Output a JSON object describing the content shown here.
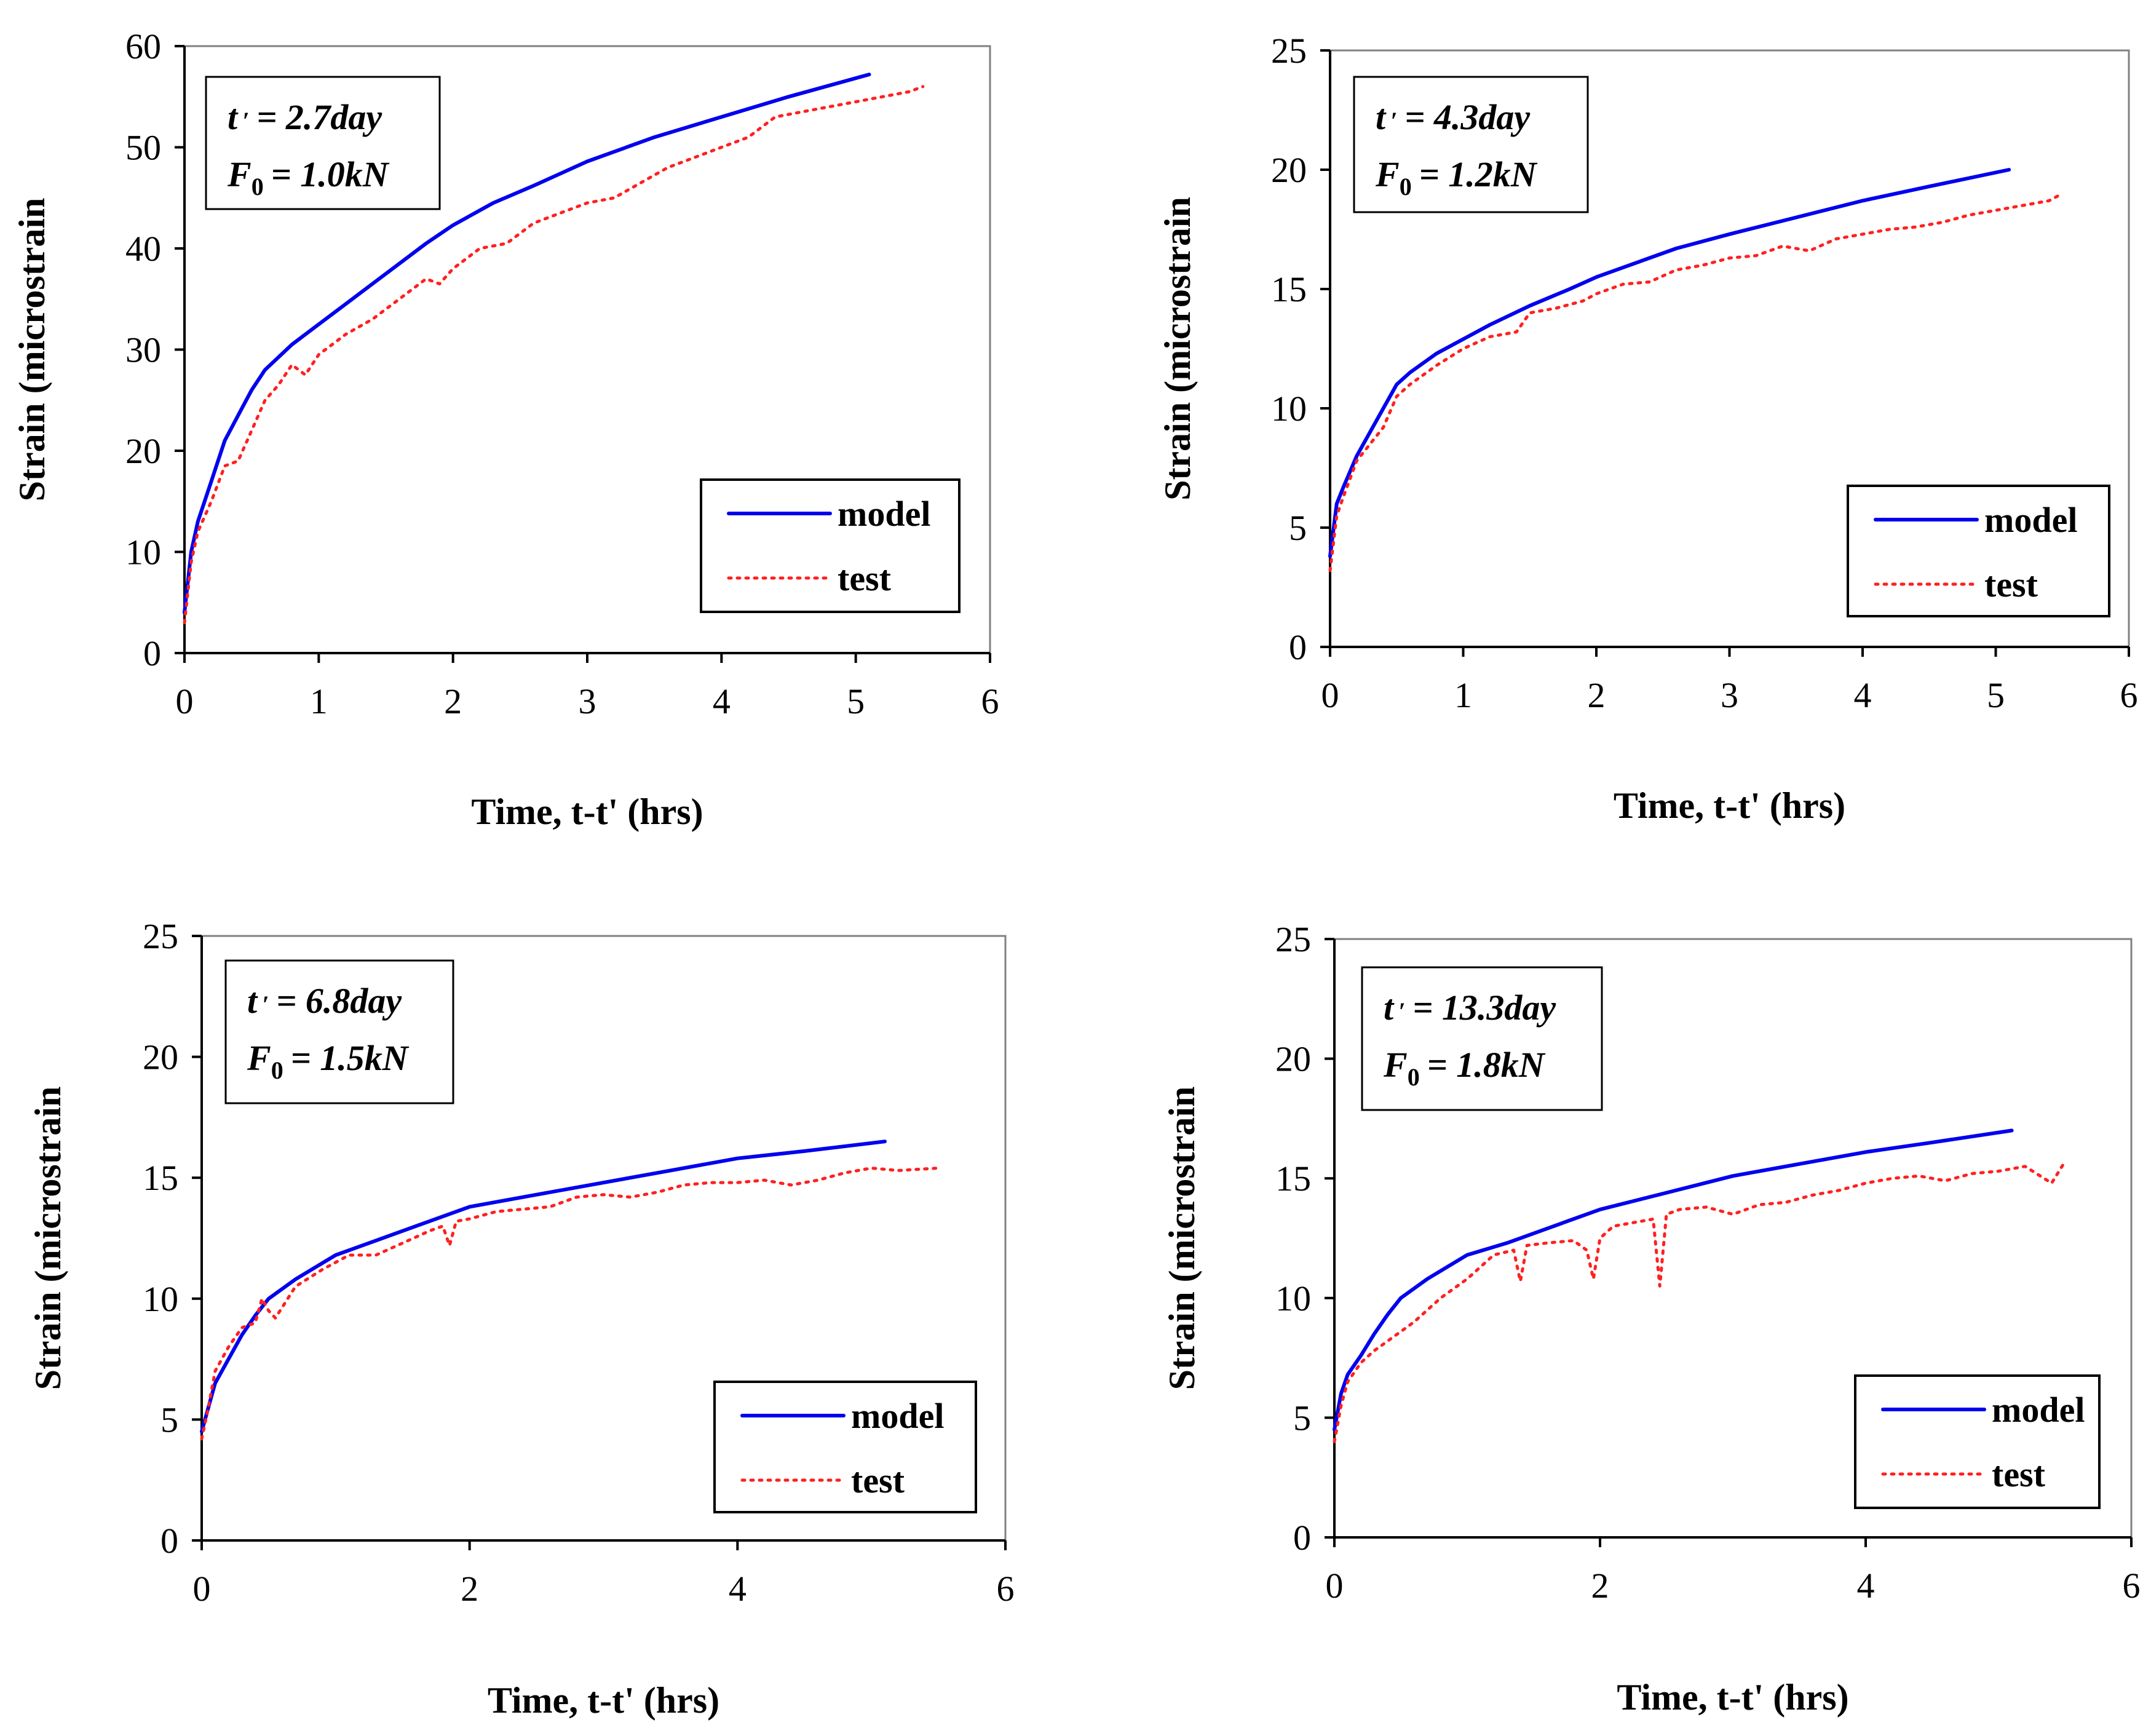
{
  "chart_data": [
    {
      "type": "line",
      "title": "",
      "xlabel": "Time, t-t' (hrs)",
      "ylabel": "Strain (microstrain",
      "xlim": [
        0,
        6
      ],
      "ylim": [
        0,
        60
      ],
      "xticks": [
        "0",
        "1",
        "2",
        "3",
        "4",
        "5",
        "6"
      ],
      "yticks": [
        "0",
        "10",
        "20",
        "30",
        "40",
        "50",
        "60"
      ],
      "annotation": {
        "age_symbol": "t",
        "age_value": "= 2.7day",
        "force_symbol": "F",
        "force_sub": "0",
        "force_value": "= 1.0kN"
      },
      "legend": {
        "position": "bottom-right",
        "entries": [
          "model",
          "test"
        ]
      },
      "series": [
        {
          "name": "model",
          "style": "solid",
          "color": "#0000ee",
          "x": [
            0,
            0.05,
            0.1,
            0.2,
            0.3,
            0.4,
            0.5,
            0.6,
            0.8,
            1.0,
            1.2,
            1.5,
            1.8,
            2.0,
            2.3,
            2.6,
            3.0,
            3.5,
            4.0,
            4.5,
            5.1
          ],
          "y": [
            4,
            10,
            13,
            17,
            21,
            23.5,
            26,
            28,
            30.5,
            32.5,
            34.5,
            37.5,
            40.5,
            42.3,
            44.5,
            46.2,
            48.6,
            51,
            53,
            55,
            57.2
          ]
        },
        {
          "name": "test",
          "style": "dotted",
          "color": "#ff2020",
          "x": [
            0,
            0.05,
            0.1,
            0.2,
            0.3,
            0.4,
            0.5,
            0.6,
            0.7,
            0.8,
            0.9,
            1.0,
            1.2,
            1.4,
            1.6,
            1.8,
            1.9,
            2.0,
            2.2,
            2.4,
            2.6,
            2.8,
            3.0,
            3.2,
            3.4,
            3.6,
            3.8,
            4.0,
            4.2,
            4.4,
            4.6,
            4.8,
            5.0,
            5.2,
            5.4,
            5.5
          ],
          "y": [
            3,
            9,
            12,
            15,
            18.5,
            19,
            22,
            25,
            26.5,
            28.5,
            27.5,
            29.5,
            31.5,
            33,
            35,
            37,
            36.5,
            38,
            40,
            40.5,
            42.5,
            43.5,
            44.5,
            45,
            46.5,
            48,
            49,
            50,
            51,
            53,
            53.5,
            54,
            54.5,
            55,
            55.5,
            56
          ]
        }
      ]
    },
    {
      "type": "line",
      "title": "",
      "xlabel": "Time, t-t' (hrs)",
      "ylabel": "Strain (microstrain",
      "xlim": [
        0,
        6
      ],
      "ylim": [
        0,
        25
      ],
      "xticks": [
        "0",
        "1",
        "2",
        "3",
        "4",
        "5",
        "6"
      ],
      "yticks": [
        "0",
        "5",
        "10",
        "15",
        "20",
        "25"
      ],
      "annotation": {
        "age_symbol": "t",
        "age_value": "= 4.3day",
        "force_symbol": "F",
        "force_sub": "0",
        "force_value": "= 1.2kN"
      },
      "legend": {
        "position": "bottom-right",
        "entries": [
          "model",
          "test"
        ]
      },
      "series": [
        {
          "name": "model",
          "style": "solid",
          "color": "#0000ee",
          "x": [
            0,
            0.05,
            0.1,
            0.2,
            0.3,
            0.4,
            0.5,
            0.6,
            0.8,
            1.0,
            1.2,
            1.5,
            1.8,
            2.0,
            2.3,
            2.6,
            3.0,
            3.5,
            4.0,
            4.5,
            5.1
          ],
          "y": [
            3.8,
            6,
            6.7,
            8,
            9,
            10,
            11,
            11.5,
            12.3,
            12.9,
            13.5,
            14.3,
            15,
            15.5,
            16.1,
            16.7,
            17.3,
            18,
            18.7,
            19.3,
            20
          ]
        },
        {
          "name": "test",
          "style": "dotted",
          "color": "#ff2020",
          "x": [
            0,
            0.05,
            0.1,
            0.2,
            0.3,
            0.4,
            0.5,
            0.6,
            0.8,
            1.0,
            1.2,
            1.4,
            1.5,
            1.7,
            1.9,
            2.0,
            2.2,
            2.4,
            2.6,
            2.8,
            3.0,
            3.2,
            3.4,
            3.6,
            3.8,
            4.0,
            4.2,
            4.4,
            4.6,
            4.8,
            5.0,
            5.2,
            5.4,
            5.5
          ],
          "y": [
            3.2,
            5.5,
            6.3,
            7.8,
            8.5,
            9.2,
            10.5,
            11,
            11.8,
            12.5,
            13,
            13.2,
            14,
            14.2,
            14.5,
            14.8,
            15.2,
            15.3,
            15.8,
            16,
            16.3,
            16.4,
            16.8,
            16.6,
            17.1,
            17.3,
            17.5,
            17.6,
            17.8,
            18.1,
            18.3,
            18.5,
            18.7,
            19
          ]
        }
      ]
    },
    {
      "type": "line",
      "title": "",
      "xlabel": "Time, t-t' (hrs)",
      "ylabel": "Strain (microstrain",
      "xlim": [
        0,
        6
      ],
      "ylim": [
        0,
        25
      ],
      "xticks": [
        "0",
        "2",
        "4",
        "6"
      ],
      "yticks": [
        "0",
        "5",
        "10",
        "15",
        "20",
        "25"
      ],
      "annotation": {
        "age_symbol": "t",
        "age_value": "= 6.8day",
        "force_symbol": "F",
        "force_sub": "0",
        "force_value": "= 1.5kN"
      },
      "legend": {
        "position": "bottom-right",
        "entries": [
          "model",
          "test"
        ]
      },
      "series": [
        {
          "name": "model",
          "style": "solid",
          "color": "#0000ee",
          "x": [
            0,
            0.05,
            0.1,
            0.2,
            0.3,
            0.4,
            0.5,
            0.7,
            1.0,
            1.3,
            1.6,
            2.0,
            2.5,
            3.0,
            3.5,
            4.0,
            4.5,
            5.1
          ],
          "y": [
            4.5,
            5.5,
            6.5,
            7.5,
            8.5,
            9.3,
            10,
            10.8,
            11.8,
            12.4,
            13,
            13.8,
            14.3,
            14.8,
            15.3,
            15.8,
            16.1,
            16.5
          ]
        },
        {
          "name": "test",
          "style": "dotted",
          "color": "#ff2020",
          "x": [
            0,
            0.05,
            0.1,
            0.2,
            0.3,
            0.4,
            0.45,
            0.5,
            0.55,
            0.7,
            0.9,
            1.1,
            1.3,
            1.5,
            1.7,
            1.8,
            1.85,
            1.9,
            2.0,
            2.2,
            2.4,
            2.6,
            2.8,
            3.0,
            3.2,
            3.4,
            3.6,
            3.8,
            4.0,
            4.2,
            4.4,
            4.6,
            4.8,
            5.0,
            5.2,
            5.5
          ],
          "y": [
            4.2,
            5.5,
            7,
            8,
            8.8,
            9,
            10,
            9.5,
            9.2,
            10.5,
            11.2,
            11.8,
            11.8,
            12.3,
            12.8,
            13,
            12.2,
            13.2,
            13.3,
            13.6,
            13.7,
            13.8,
            14.2,
            14.3,
            14.2,
            14.4,
            14.7,
            14.8,
            14.8,
            14.9,
            14.7,
            14.9,
            15.2,
            15.4,
            15.3,
            15.4
          ]
        }
      ]
    },
    {
      "type": "line",
      "title": "",
      "xlabel": "Time, t-t' (hrs)",
      "ylabel": "Strain (microstrain",
      "xlim": [
        0,
        6
      ],
      "ylim": [
        0,
        25
      ],
      "xticks": [
        "0",
        "2",
        "4",
        "6"
      ],
      "yticks": [
        "0",
        "5",
        "10",
        "15",
        "20",
        "25"
      ],
      "annotation": {
        "age_symbol": "t",
        "age_value": "= 13.3day",
        "force_symbol": "F",
        "force_sub": "0",
        "force_value": "= 1.8kN"
      },
      "legend": {
        "position": "bottom-right",
        "entries": [
          "model",
          "test"
        ]
      },
      "series": [
        {
          "name": "model",
          "style": "solid",
          "color": "#0000ee",
          "x": [
            0,
            0.05,
            0.1,
            0.2,
            0.3,
            0.4,
            0.5,
            0.7,
            1.0,
            1.3,
            1.6,
            2.0,
            2.5,
            3.0,
            3.5,
            4.0,
            4.5,
            5.1
          ],
          "y": [
            4.5,
            6,
            6.8,
            7.6,
            8.5,
            9.3,
            10,
            10.8,
            11.8,
            12.3,
            12.9,
            13.7,
            14.4,
            15.1,
            15.6,
            16.1,
            16.5,
            17
          ]
        },
        {
          "name": "test",
          "style": "dotted",
          "color": "#ff2020",
          "x": [
            0,
            0.05,
            0.1,
            0.2,
            0.3,
            0.4,
            0.5,
            0.6,
            0.8,
            1.0,
            1.2,
            1.35,
            1.4,
            1.45,
            1.6,
            1.8,
            1.9,
            1.95,
            2.0,
            2.1,
            2.3,
            2.4,
            2.45,
            2.5,
            2.6,
            2.8,
            3.0,
            3.2,
            3.4,
            3.6,
            3.8,
            4.0,
            4.2,
            4.4,
            4.6,
            4.8,
            5.0,
            5.2,
            5.4,
            5.5
          ],
          "y": [
            4,
            5.5,
            6.5,
            7.3,
            7.8,
            8.2,
            8.6,
            9,
            10,
            10.8,
            11.8,
            12,
            10.7,
            12.2,
            12.3,
            12.4,
            12,
            10.8,
            12.5,
            13,
            13.2,
            13.3,
            10.5,
            13.5,
            13.7,
            13.8,
            13.5,
            13.9,
            14,
            14.3,
            14.5,
            14.8,
            15,
            15.1,
            14.9,
            15.2,
            15.3,
            15.5,
            14.8,
            15.7
          ]
        }
      ]
    }
  ]
}
